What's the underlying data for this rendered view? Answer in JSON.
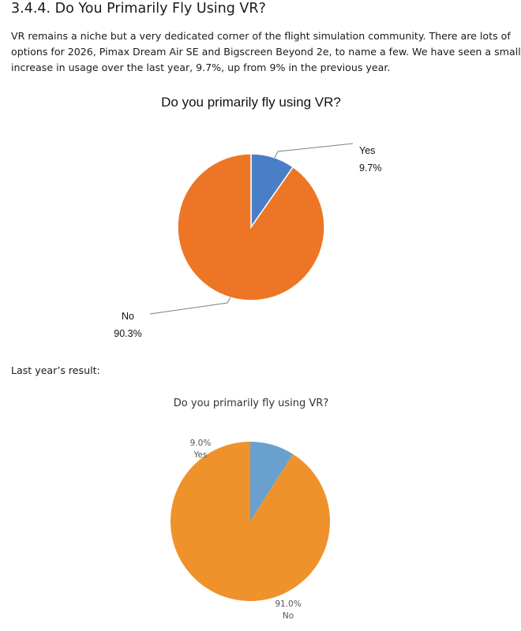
{
  "section": {
    "heading": "3.4.4. Do You Primarily Fly Using VR?",
    "intro_lines": [
      "VR remains a niche but a very dedicated corner of the flight simulation community. There are lots of",
      "options for 2026, Pimax Dream Air SE and Bigscreen Beyond 2e, to name a few. We have seen a small",
      "increase in usage over the last year, 9.7%, up from 9% in the previous year."
    ],
    "last_year_label": "Last year’s result:"
  },
  "chart_data": [
    {
      "type": "pie",
      "title": "Do you primarily fly using VR?",
      "categories": [
        "Yes",
        "No"
      ],
      "values": [
        9.7,
        90.3
      ],
      "value_labels": [
        "9.7%",
        "90.3%"
      ],
      "colors": [
        "#4a7ec6",
        "#ec7625"
      ],
      "slice_border_color": "#ffffff",
      "label_placement": "outside with leader lines",
      "legend": "none"
    },
    {
      "type": "pie",
      "title": "Do you primarily fly using VR?",
      "categories": [
        "Yes",
        "No"
      ],
      "values": [
        9.0,
        91.0
      ],
      "value_labels": [
        "9.0%",
        "91.0%"
      ],
      "colors": [
        "#6aa0cd",
        "#ef922c"
      ],
      "label_placement": "outside, value above category",
      "legend": "none"
    }
  ]
}
